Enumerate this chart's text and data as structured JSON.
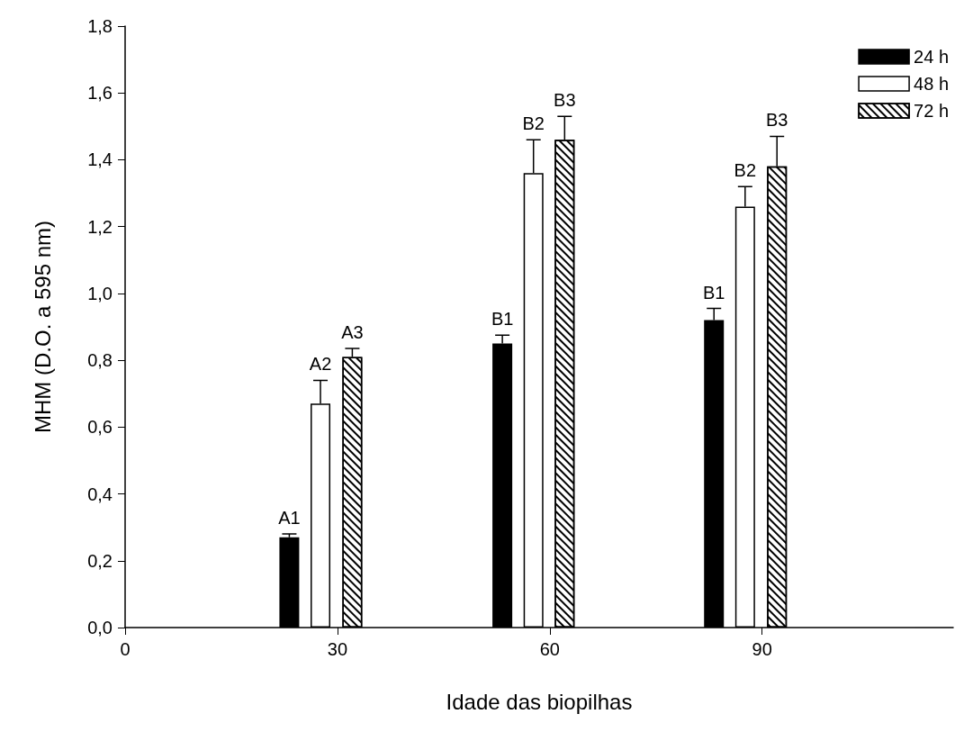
{
  "chart_data": {
    "type": "bar",
    "xlabel": "Idade das biopilhas",
    "ylabel": "MHM (D.O. a 595 nm)",
    "xlim": [
      0,
      117
    ],
    "xticks": [
      0,
      30,
      60,
      90
    ],
    "ylim": [
      0,
      1.8
    ],
    "yticks": [
      {
        "value": 0,
        "label": "0,0"
      },
      {
        "value": 0.2,
        "label": "0,2"
      },
      {
        "value": 0.4,
        "label": "0,4"
      },
      {
        "value": 0.6,
        "label": "0,6"
      },
      {
        "value": 0.8,
        "label": "0,8"
      },
      {
        "value": 1.0,
        "label": "1,0"
      },
      {
        "value": 1.2,
        "label": "1,2"
      },
      {
        "value": 1.4,
        "label": "1,4"
      },
      {
        "value": 1.6,
        "label": "1,6"
      },
      {
        "value": 1.8,
        "label": "1,8"
      }
    ],
    "series": [
      {
        "name": "24 h",
        "color": "#000000",
        "x": [
          23.2,
          53.3,
          83.2
        ],
        "values": [
          0.27,
          0.85,
          0.92
        ],
        "errors": [
          [
            0.27,
            0.28
          ],
          [
            0.85,
            0.875
          ],
          [
            0.92,
            0.955
          ]
        ],
        "value_labels": [
          "A1",
          "B1",
          "B1"
        ]
      },
      {
        "name": "48 h",
        "color": "#ffffff",
        "x": [
          27.6,
          57.7,
          87.6
        ],
        "values": [
          0.67,
          1.36,
          1.26
        ],
        "errors": [
          [
            0.67,
            0.74
          ],
          [
            1.36,
            1.46
          ],
          [
            1.26,
            1.32
          ]
        ],
        "value_labels": [
          "A2",
          "B2",
          "B2"
        ]
      },
      {
        "name": "72 h",
        "color": "#ffffff",
        "x": [
          32.1,
          62.1,
          92.1
        ],
        "values": [
          0.81,
          1.46,
          1.38
        ],
        "errors": [
          [
            0.81,
            0.835
          ],
          [
            1.46,
            1.53
          ],
          [
            1.38,
            1.47
          ]
        ],
        "value_labels": [
          "A3",
          "B3",
          "B3"
        ]
      }
    ],
    "grid": false,
    "legend": "top right"
  }
}
